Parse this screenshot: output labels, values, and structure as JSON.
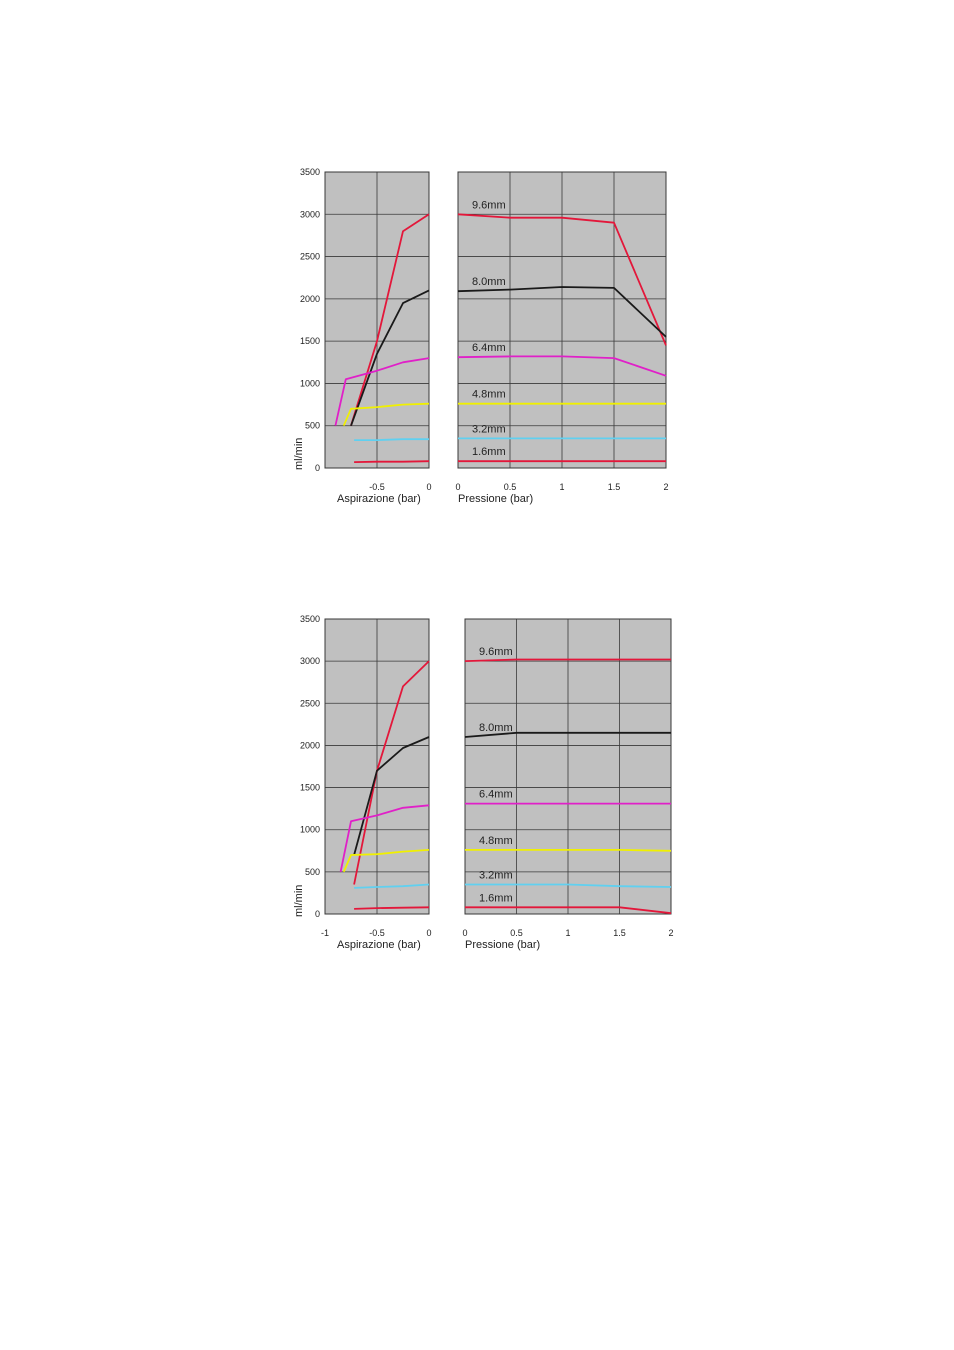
{
  "chart_data": [
    {
      "type": "line",
      "ylabel": "ml/min",
      "y_ticks": [
        "0",
        "500",
        "1000",
        "1500",
        "2000",
        "2500",
        "3000",
        "3500"
      ],
      "ylim": [
        0,
        3500
      ],
      "grid": true,
      "background": "#c0c0c0",
      "panels": [
        {
          "xlabel": "Aspirazione (bar)",
          "xlim": [
            -1,
            0
          ],
          "x_ticks": [
            "-0.5",
            "0"
          ],
          "x_tick_values": [
            -0.5,
            0
          ],
          "series": [
            {
              "color": "#e3173a",
              "x": [
                -0.75,
                -0.5,
                -0.25,
                0
              ],
              "y": [
                500,
                1500,
                2800,
                3000
              ]
            },
            {
              "color": "#1a1a1a",
              "x": [
                -0.75,
                -0.5,
                -0.25,
                0
              ],
              "y": [
                500,
                1350,
                1950,
                2100
              ]
            },
            {
              "color": "#e020c8",
              "x": [
                -0.9,
                -0.8,
                -0.5,
                -0.25,
                0
              ],
              "y": [
                500,
                1050,
                1150,
                1250,
                1300
              ]
            },
            {
              "color": "#f0f000",
              "x": [
                -0.82,
                -0.75,
                -0.5,
                -0.25,
                0
              ],
              "y": [
                500,
                700,
                720,
                750,
                760
              ]
            },
            {
              "color": "#60d0f0",
              "x": [
                -0.72,
                -0.5,
                -0.25,
                0
              ],
              "y": [
                330,
                330,
                340,
                340
              ]
            },
            {
              "color": "#e3173a",
              "x": [
                -0.72,
                -0.5,
                -0.25,
                0
              ],
              "y": [
                70,
                75,
                75,
                80
              ]
            }
          ]
        },
        {
          "xlabel": "Pressione (bar)",
          "xlim": [
            0,
            2
          ],
          "x_ticks": [
            "0",
            "0.5",
            "1",
            "1.5",
            "2"
          ],
          "x_tick_values": [
            0,
            0.5,
            1,
            1.5,
            2
          ],
          "series": [
            {
              "name": "9.6mm",
              "color": "#e3173a",
              "x": [
                0,
                0.5,
                1,
                1.5,
                2
              ],
              "y": [
                3000,
                2960,
                2960,
                2900,
                1450
              ]
            },
            {
              "name": "8.0mm",
              "color": "#1a1a1a",
              "x": [
                0,
                0.5,
                1,
                1.5,
                2
              ],
              "y": [
                2090,
                2110,
                2140,
                2130,
                1550
              ]
            },
            {
              "name": "6.4mm",
              "color": "#e020c8",
              "x": [
                0,
                0.5,
                1,
                1.5,
                2
              ],
              "y": [
                1310,
                1320,
                1320,
                1300,
                1090
              ]
            },
            {
              "name": "4.8mm",
              "color": "#f0f000",
              "x": [
                0,
                0.5,
                1,
                1.5,
                2
              ],
              "y": [
                760,
                760,
                760,
                760,
                760
              ]
            },
            {
              "name": "3.2mm",
              "color": "#60d0f0",
              "x": [
                0,
                0.5,
                1,
                1.5,
                2
              ],
              "y": [
                350,
                350,
                350,
                350,
                350
              ]
            },
            {
              "name": "1.6mm",
              "color": "#e3173a",
              "x": [
                0,
                0.5,
                1,
                1.5,
                2
              ],
              "y": [
                80,
                80,
                80,
                80,
                80
              ]
            }
          ]
        }
      ]
    },
    {
      "type": "line",
      "ylabel": "ml/min",
      "y_ticks": [
        "0",
        "500",
        "1000",
        "1500",
        "2000",
        "2500",
        "3000",
        "3500"
      ],
      "ylim": [
        0,
        3500
      ],
      "grid": true,
      "background": "#c0c0c0",
      "panels": [
        {
          "xlabel": "Aspirazione (bar)",
          "xlim": [
            -1,
            0
          ],
          "x_ticks": [
            "-1",
            "-0.5",
            "0"
          ],
          "x_tick_values": [
            -1,
            -0.5,
            0
          ],
          "series": [
            {
              "color": "#e3173a",
              "x": [
                -0.72,
                -0.5,
                -0.25,
                0
              ],
              "y": [
                350,
                1700,
                2700,
                3000
              ]
            },
            {
              "color": "#1a1a1a",
              "x": [
                -0.72,
                -0.5,
                -0.25,
                0
              ],
              "y": [
                700,
                1700,
                1970,
                2100
              ]
            },
            {
              "color": "#e020c8",
              "x": [
                -0.85,
                -0.75,
                -0.5,
                -0.25,
                0
              ],
              "y": [
                500,
                1100,
                1170,
                1260,
                1290
              ]
            },
            {
              "color": "#f0f000",
              "x": [
                -0.82,
                -0.75,
                -0.5,
                -0.25,
                0
              ],
              "y": [
                500,
                700,
                710,
                740,
                760
              ]
            },
            {
              "color": "#60d0f0",
              "x": [
                -0.72,
                -0.5,
                -0.25,
                0
              ],
              "y": [
                310,
                320,
                330,
                350
              ]
            },
            {
              "color": "#e3173a",
              "x": [
                -0.72,
                -0.5,
                -0.25,
                0
              ],
              "y": [
                60,
                70,
                75,
                80
              ]
            }
          ]
        },
        {
          "xlabel": "Pressione (bar)",
          "xlim": [
            0,
            2
          ],
          "x_ticks": [
            "0",
            "0.5",
            "1",
            "1.5",
            "2"
          ],
          "x_tick_values": [
            0,
            0.5,
            1,
            1.5,
            2
          ],
          "series": [
            {
              "name": "9.6mm",
              "color": "#e3173a",
              "x": [
                0,
                0.5,
                1,
                1.5,
                2
              ],
              "y": [
                3000,
                3020,
                3020,
                3020,
                3020
              ]
            },
            {
              "name": "8.0mm",
              "color": "#1a1a1a",
              "x": [
                0,
                0.5,
                1,
                1.5,
                2
              ],
              "y": [
                2100,
                2150,
                2150,
                2150,
                2150
              ]
            },
            {
              "name": "6.4mm",
              "color": "#e020c8",
              "x": [
                0,
                0.5,
                1,
                1.5,
                2
              ],
              "y": [
                1310,
                1310,
                1310,
                1310,
                1310
              ]
            },
            {
              "name": "4.8mm",
              "color": "#f0f000",
              "x": [
                0,
                0.5,
                1,
                1.5,
                2
              ],
              "y": [
                760,
                760,
                760,
                760,
                750
              ]
            },
            {
              "name": "3.2mm",
              "color": "#60d0f0",
              "x": [
                0,
                0.5,
                1,
                1.5,
                2
              ],
              "y": [
                350,
                350,
                350,
                330,
                320
              ]
            },
            {
              "name": "1.6mm",
              "color": "#e3173a",
              "x": [
                0,
                0.5,
                1,
                1.5,
                2
              ],
              "y": [
                80,
                80,
                80,
                80,
                10
              ]
            }
          ]
        }
      ]
    }
  ]
}
